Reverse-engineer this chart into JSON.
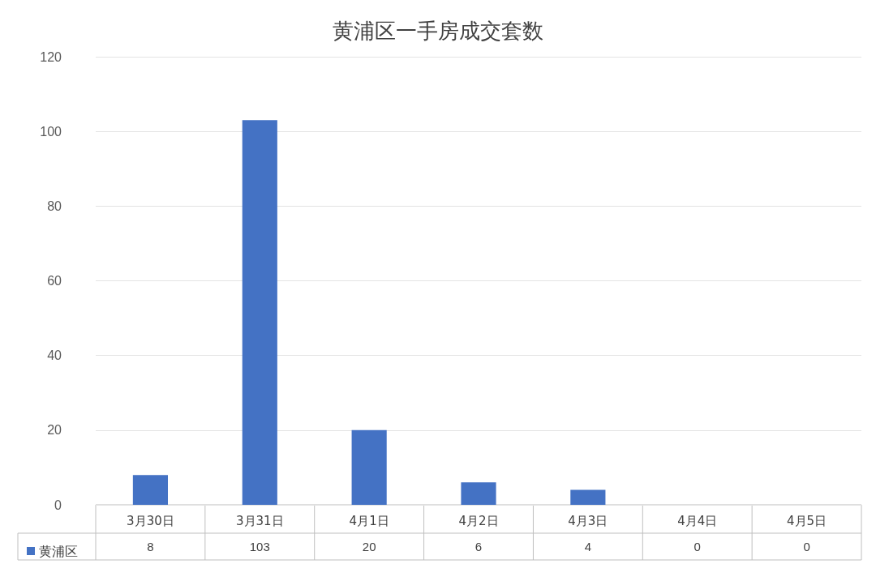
{
  "chart_data": {
    "type": "bar",
    "title": "黄浦区一手房成交套数",
    "categories": [
      "3月30日",
      "3月31日",
      "4月1日",
      "4月2日",
      "4月3日",
      "4月4日",
      "4月5日"
    ],
    "series": [
      {
        "name": "黄浦区",
        "color": "#4472c4",
        "values": [
          8,
          103,
          20,
          6,
          4,
          0,
          0
        ]
      }
    ],
    "ylim": [
      0,
      120
    ],
    "yticks": [
      0,
      20,
      40,
      60,
      80,
      100,
      120
    ],
    "grid": "y",
    "legend": "bottom left",
    "data_labels": true
  }
}
